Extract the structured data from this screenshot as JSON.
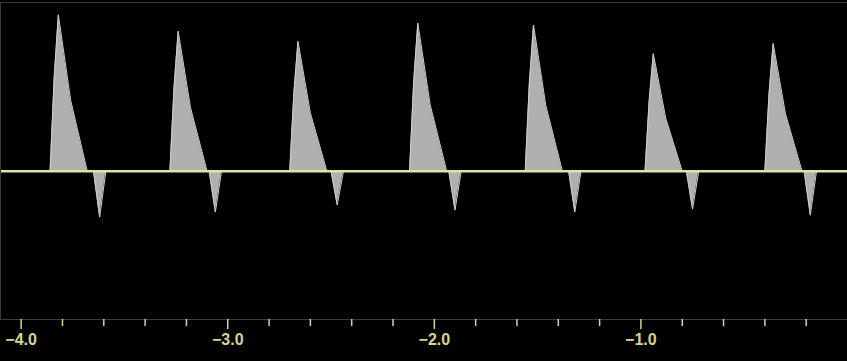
{
  "chart_data": {
    "type": "area",
    "x": [
      -3.86,
      -3.84,
      -3.82,
      -3.76,
      -3.68,
      -3.65,
      -3.62,
      -3.59,
      -3.28,
      -3.26,
      -3.24,
      -3.18,
      -3.1,
      -3.09,
      -3.06,
      -3.03,
      -2.7,
      -2.68,
      -2.66,
      -2.6,
      -2.52,
      -2.5,
      -2.47,
      -2.44,
      -2.12,
      -2.1,
      -2.08,
      -2.02,
      -1.94,
      -1.93,
      -1.9,
      -1.87,
      -1.56,
      -1.54,
      -1.52,
      -1.46,
      -1.38,
      -1.35,
      -1.32,
      -1.29,
      -0.98,
      -0.96,
      -0.94,
      -0.88,
      -0.8,
      -0.78,
      -0.75,
      -0.72,
      -0.4,
      -0.38,
      -0.36,
      -0.3,
      -0.22,
      -0.21,
      -0.18,
      -0.15
    ],
    "values": [
      0,
      92,
      153,
      69,
      0,
      0,
      -45,
      0,
      0,
      82,
      137,
      62,
      0,
      0,
      -40,
      0,
      0,
      76,
      127,
      57,
      0,
      0,
      -33,
      0,
      0,
      87,
      145,
      65,
      0,
      0,
      -38,
      0,
      0,
      86,
      143,
      64,
      0,
      0,
      -40,
      0,
      0,
      69,
      115,
      52,
      0,
      0,
      -37,
      0,
      0,
      75,
      125,
      56,
      0,
      0,
      -43,
      0
    ],
    "baseline": 0,
    "color": "#cfcfcf",
    "baseline_color": "#dde4a4",
    "axis_color": "#d4d68e",
    "xlim": [
      -4.1,
      0
    ],
    "xticks": [
      -4,
      -3,
      -2,
      -1
    ],
    "minor_xticks": [
      -3.8,
      -3.6,
      -3.4,
      -3.2,
      -2.8,
      -2.6,
      -2.4,
      -2.2,
      -1.8,
      -1.6,
      -1.4,
      -1.2,
      -0.8,
      -0.6,
      -0.4,
      -0.2
    ],
    "ylim": [
      -145,
      165
    ],
    "tick_labels": "x",
    "grid": false
  }
}
